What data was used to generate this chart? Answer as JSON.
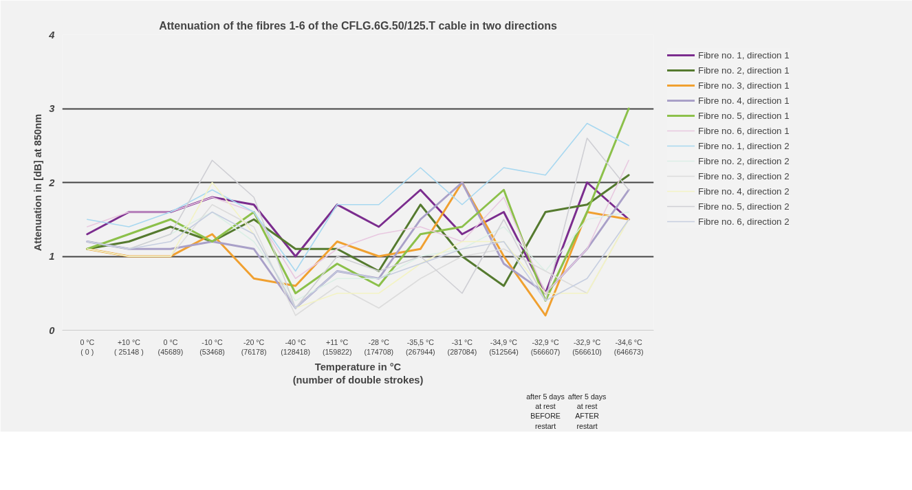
{
  "chart_data": {
    "type": "line",
    "title": "Attenuation of the fibres 1-6 of the CFLG.6G.50/125.T cable in two directions",
    "xlabel": "Temperature in °C\n(number of double strokes)",
    "ylabel": "Attenuation in [dB] at 850nm",
    "categories": [
      "0 °C\n( 0 )",
      "+10 °C\n( 25148 )",
      "0 °C\n(45689)",
      "-10 °C\n(53468)",
      "-20 °C\n(76178)",
      "-40 °C\n(128418)",
      "+11 °C\n(159822)",
      "-28 °C\n(174708)",
      "-35,5 °C\n(267944)",
      "-31 °C\n(287084)",
      "-34,9 °C\n(512564)",
      "-32,9 °C\n(566607)",
      "-32,9 °C\n(566610)",
      "-34,6 °C\n(646673)"
    ],
    "series": [
      {
        "name": "Fibre no. 1, direction 1",
        "color": "#7b2d8e",
        "values": [
          1.3,
          1.6,
          1.6,
          1.8,
          1.7,
          1.0,
          1.7,
          1.4,
          1.9,
          1.3,
          1.6,
          0.5,
          2.0,
          1.5
        ]
      },
      {
        "name": "Fibre no. 2, direction 1",
        "color": "#557a2f",
        "values": [
          1.1,
          1.2,
          1.4,
          1.2,
          1.5,
          1.1,
          1.1,
          0.8,
          1.7,
          1.0,
          0.6,
          1.6,
          1.7,
          2.1
        ]
      },
      {
        "name": "Fibre no. 3, direction 1",
        "color": "#f0a030",
        "values": [
          1.1,
          1.0,
          1.0,
          1.3,
          0.7,
          0.6,
          1.2,
          1.0,
          1.1,
          2.0,
          1.0,
          0.2,
          1.6,
          1.5
        ]
      },
      {
        "name": "Fibre no. 4, direction 1",
        "color": "#a9a0c8",
        "values": [
          1.2,
          1.1,
          1.1,
          1.2,
          1.1,
          0.3,
          0.8,
          0.7,
          1.5,
          2.0,
          0.9,
          0.5,
          1.1,
          1.9
        ]
      },
      {
        "name": "Fibre no. 5, direction 1",
        "color": "#8cc04a",
        "values": [
          1.1,
          1.3,
          1.5,
          1.2,
          1.6,
          0.5,
          0.9,
          0.6,
          1.3,
          1.4,
          1.9,
          0.4,
          1.6,
          3.0
        ]
      },
      {
        "name": "Fibre no. 6, direction 1",
        "color": "#e8c8e0",
        "values": [
          1.4,
          1.6,
          1.6,
          1.8,
          1.6,
          0.7,
          1.1,
          1.3,
          1.4,
          1.2,
          1.8,
          0.5,
          1.1,
          2.3
        ]
      },
      {
        "name": "Fibre no. 1, direction 2",
        "color": "#a8d8f0",
        "values": [
          1.5,
          1.4,
          1.6,
          1.9,
          1.6,
          0.8,
          1.7,
          1.7,
          2.2,
          1.7,
          2.2,
          2.1,
          2.8,
          2.5
        ]
      },
      {
        "name": "Fibre no. 2, direction 2",
        "color": "#dcefe6",
        "values": [
          1.2,
          1.1,
          1.3,
          1.6,
          1.2,
          0.4,
          0.7,
          0.7,
          1.0,
          1.1,
          1.4,
          0.8,
          1.5,
          1.6
        ]
      },
      {
        "name": "Fibre no. 3, direction 2",
        "color": "#dcdcdc",
        "values": [
          1.1,
          1.0,
          1.0,
          1.7,
          1.4,
          0.2,
          0.6,
          0.3,
          0.7,
          1.0,
          1.1,
          0.8,
          0.5,
          1.5
        ]
      },
      {
        "name": "Fibre no. 4, direction 2",
        "color": "#f3f3c4",
        "values": [
          1.1,
          1.0,
          1.0,
          2.0,
          1.3,
          0.3,
          0.5,
          0.5,
          0.9,
          1.2,
          1.2,
          0.5,
          0.5,
          1.5
        ]
      },
      {
        "name": "Fibre no. 5, direction 2",
        "color": "#cfcfd4",
        "values": [
          1.2,
          1.1,
          1.3,
          2.3,
          1.8,
          0.3,
          1.0,
          0.8,
          1.0,
          0.5,
          1.5,
          0.4,
          2.6,
          1.9
        ]
      },
      {
        "name": "Fibre no. 6, direction 2",
        "color": "#c6cee0",
        "values": [
          1.2,
          1.1,
          1.2,
          1.6,
          1.3,
          0.3,
          0.8,
          0.7,
          0.9,
          1.1,
          1.2,
          0.4,
          0.7,
          1.5
        ]
      }
    ],
    "annotations": [
      "after 5 days\nat rest\nBEFORE\nrestart",
      "after 5 days\nat rest\nAFTER\nrestart"
    ],
    "ylim": [
      0,
      4
    ],
    "yticks": [
      0,
      1,
      2,
      3,
      4
    ],
    "grid": "y",
    "legend": "right",
    "marker": "none",
    "line_style": "solid"
  }
}
